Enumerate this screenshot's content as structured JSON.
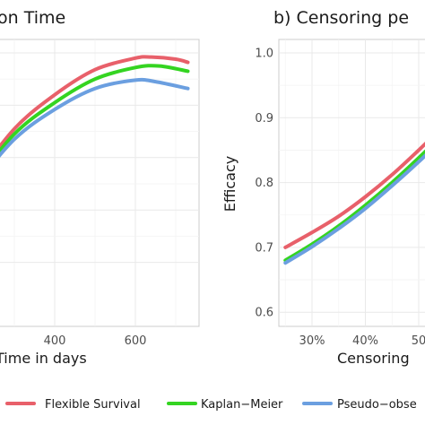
{
  "chart_data": [
    {
      "type": "line",
      "title": "on Time",
      "xlabel": "Time in days",
      "ylabel": "",
      "xticks": [
        "400",
        "600"
      ],
      "xlim": [
        150,
        750
      ],
      "ylim": [
        0.52,
        1.03
      ],
      "grid": true,
      "series": [
        {
          "name": "Flexible Survival",
          "color": "#e8606a",
          "x": [
            150,
            200,
            300,
            400,
            500,
            600,
            640,
            700,
            730
          ],
          "y": [
            0.7,
            0.755,
            0.855,
            0.92,
            0.968,
            0.99,
            0.992,
            0.988,
            0.982
          ]
        },
        {
          "name": "Kaplan−Meier",
          "color": "#34d421",
          "x": [
            150,
            200,
            300,
            400,
            500,
            600,
            660,
            730
          ],
          "y": [
            0.7,
            0.75,
            0.845,
            0.905,
            0.95,
            0.972,
            0.975,
            0.965
          ]
        },
        {
          "name": "Pseudo−observations",
          "color": "#6b9fe0",
          "x": [
            150,
            200,
            300,
            400,
            500,
            600,
            650,
            730
          ],
          "y": [
            0.7,
            0.745,
            0.835,
            0.892,
            0.932,
            0.948,
            0.945,
            0.932
          ]
        }
      ]
    },
    {
      "type": "line",
      "title": "b) Censoring pe",
      "xlabel": "Censoring",
      "ylabel": "Efficacy",
      "xticks": [
        "30%",
        "40%",
        "50"
      ],
      "xticks_values": [
        30,
        40,
        50
      ],
      "yticks": [
        "0.6",
        "0.7",
        "0.8",
        "0.9",
        "1.0"
      ],
      "yticks_values": [
        0.6,
        0.7,
        0.8,
        0.9,
        1.0
      ],
      "xlim": [
        23,
        55
      ],
      "ylim": [
        0.58,
        1.02
      ],
      "grid": true,
      "series": [
        {
          "name": "Flexible Survival",
          "color": "#e8606a",
          "x": [
            25,
            30,
            35,
            40,
            45,
            50,
            55
          ],
          "y": [
            0.7,
            0.723,
            0.748,
            0.778,
            0.812,
            0.85,
            0.89
          ]
        },
        {
          "name": "Kaplan−Meier",
          "color": "#34d421",
          "x": [
            25,
            30,
            35,
            40,
            45,
            50,
            55
          ],
          "y": [
            0.68,
            0.705,
            0.733,
            0.765,
            0.8,
            0.838,
            0.878
          ]
        },
        {
          "name": "Pseudo−observations",
          "color": "#6b9fe0",
          "x": [
            25,
            30,
            35,
            40,
            45,
            50,
            55
          ],
          "y": [
            0.676,
            0.701,
            0.729,
            0.76,
            0.795,
            0.832,
            0.872
          ]
        }
      ]
    }
  ],
  "legend": {
    "position": "bottom",
    "items": [
      {
        "label": "Flexible Survival",
        "color": "#e8606a"
      },
      {
        "label": "Kaplan−Meier",
        "color": "#34d421"
      },
      {
        "label": "Pseudo−obse",
        "color": "#6b9fe0"
      }
    ]
  }
}
